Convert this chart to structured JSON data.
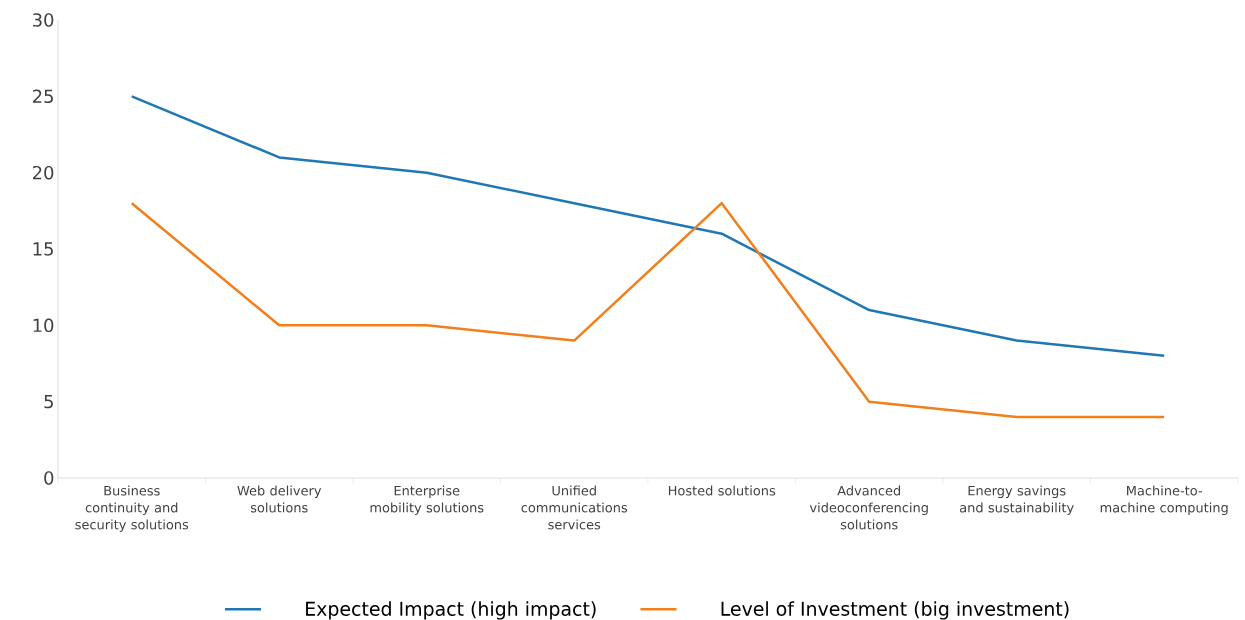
{
  "chart_data": {
    "type": "line",
    "categories": [
      "Business continuity and security solutions",
      "Web delivery solutions",
      "Enterprise mobility solutions",
      "Unified communications services",
      "Hosted solutions",
      "Advanced videoconferencing solutions",
      "Energy savings and sustainability",
      "Machine-to-machine computing"
    ],
    "series": [
      {
        "name": "Expected Impact (high impact)",
        "color": "#1f78b4",
        "values": [
          25,
          21,
          20,
          18,
          16,
          11,
          9,
          8
        ]
      },
      {
        "name": "Level of Investment (big investment)",
        "color": "#f07f1c",
        "values": [
          18,
          10,
          10,
          9,
          18,
          5,
          4,
          4
        ]
      }
    ],
    "ylim": [
      0,
      30
    ],
    "yticks": [
      0,
      5,
      10,
      15,
      20,
      25,
      30
    ],
    "grid": false,
    "legend": "bottom",
    "marker": "none",
    "line_style": "solid"
  }
}
